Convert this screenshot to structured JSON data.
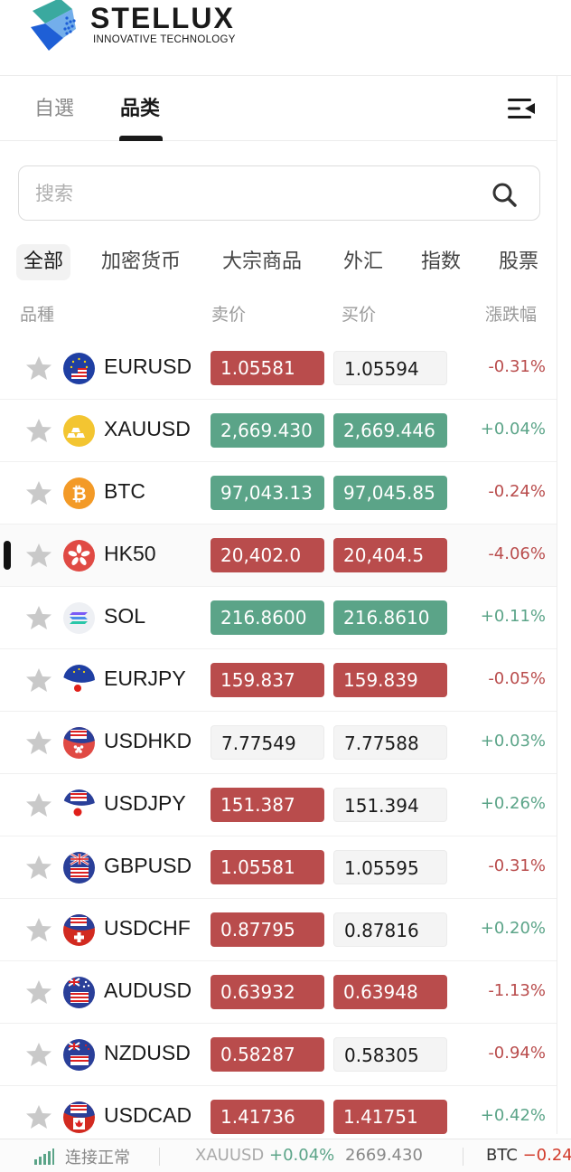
{
  "brand": {
    "name": "STELLUX",
    "tagline": "INNOVATIVE TECHNOLOGY"
  },
  "tabs": [
    {
      "label": "自選",
      "active": false
    },
    {
      "label": "品类",
      "active": true
    }
  ],
  "search": {
    "placeholder": "搜索",
    "value": ""
  },
  "categories": [
    {
      "label": "全部",
      "active": true
    },
    {
      "label": "加密货币",
      "active": false
    },
    {
      "label": "大宗商品",
      "active": false
    },
    {
      "label": "外汇",
      "active": false
    },
    {
      "label": "指数",
      "active": false
    },
    {
      "label": "股票",
      "active": false
    }
  ],
  "columns": {
    "symbol": "品種",
    "bid": "卖价",
    "ask": "买价",
    "change": "漲跌幅"
  },
  "rows": [
    {
      "symbol": "EURUSD",
      "icon": "eu-us-flag-icon",
      "bid": "1.05581",
      "bid_style": "red",
      "ask": "1.05594",
      "ask_style": "neutral",
      "change": "-0.31%",
      "dir": "neg"
    },
    {
      "symbol": "XAUUSD",
      "icon": "gold-icon",
      "bid": "2,669.430",
      "bid_style": "green",
      "ask": "2,669.446",
      "ask_style": "green",
      "change": "+0.04%",
      "dir": "pos"
    },
    {
      "symbol": "BTC",
      "icon": "bitcoin-icon",
      "bid": "97,043.13",
      "bid_style": "green",
      "ask": "97,045.85",
      "ask_style": "green",
      "change": "-0.24%",
      "dir": "neg"
    },
    {
      "symbol": "HK50",
      "icon": "hong-kong-flag-icon",
      "bid": "20,402.0",
      "bid_style": "red",
      "ask": "20,404.5",
      "ask_style": "red",
      "change": "-4.06%",
      "dir": "neg",
      "selected": true
    },
    {
      "symbol": "SOL",
      "icon": "solana-icon",
      "bid": "216.8600",
      "bid_style": "green",
      "ask": "216.8610",
      "ask_style": "green",
      "change": "+0.11%",
      "dir": "pos"
    },
    {
      "symbol": "EURJPY",
      "icon": "eu-jp-flag-icon",
      "bid": "159.837",
      "bid_style": "red",
      "ask": "159.839",
      "ask_style": "red",
      "change": "-0.05%",
      "dir": "neg"
    },
    {
      "symbol": "USDHKD",
      "icon": "us-hk-flag-icon",
      "bid": "7.77549",
      "bid_style": "neutral",
      "ask": "7.77588",
      "ask_style": "neutral",
      "change": "+0.03%",
      "dir": "pos"
    },
    {
      "symbol": "USDJPY",
      "icon": "us-jp-flag-icon",
      "bid": "151.387",
      "bid_style": "red",
      "ask": "151.394",
      "ask_style": "neutral",
      "change": "+0.26%",
      "dir": "pos"
    },
    {
      "symbol": "GBPUSD",
      "icon": "gb-us-flag-icon",
      "bid": "1.05581",
      "bid_style": "red",
      "ask": "1.05595",
      "ask_style": "neutral",
      "change": "-0.31%",
      "dir": "neg"
    },
    {
      "symbol": "USDCHF",
      "icon": "us-ch-flag-icon",
      "bid": "0.87795",
      "bid_style": "red",
      "ask": "0.87816",
      "ask_style": "neutral",
      "change": "+0.20%",
      "dir": "pos"
    },
    {
      "symbol": "AUDUSD",
      "icon": "au-us-flag-icon",
      "bid": "0.63932",
      "bid_style": "red",
      "ask": "0.63948",
      "ask_style": "red",
      "change": "-1.13%",
      "dir": "neg"
    },
    {
      "symbol": "NZDUSD",
      "icon": "nz-us-flag-icon",
      "bid": "0.58287",
      "bid_style": "red",
      "ask": "0.58305",
      "ask_style": "neutral",
      "change": "-0.94%",
      "dir": "neg"
    },
    {
      "symbol": "USDCAD",
      "icon": "us-ca-flag-icon",
      "bid": "1.41736",
      "bid_style": "red",
      "ask": "1.41751",
      "ask_style": "red",
      "change": "+0.42%",
      "dir": "pos"
    }
  ],
  "status": {
    "connection": "连接正常",
    "tickers": [
      {
        "symbol": "XAUUSD",
        "change": "+0.04%",
        "price": "2669.430",
        "dir": "pos"
      },
      {
        "symbol": "BTC",
        "change": "−0.24",
        "dir": "neg"
      }
    ]
  },
  "colors": {
    "down": "#b94c4c",
    "up": "#5ba488",
    "accent": "#1a1a1a",
    "brand_blue": "#1e5fd6",
    "brand_teal": "#3aa99f"
  }
}
